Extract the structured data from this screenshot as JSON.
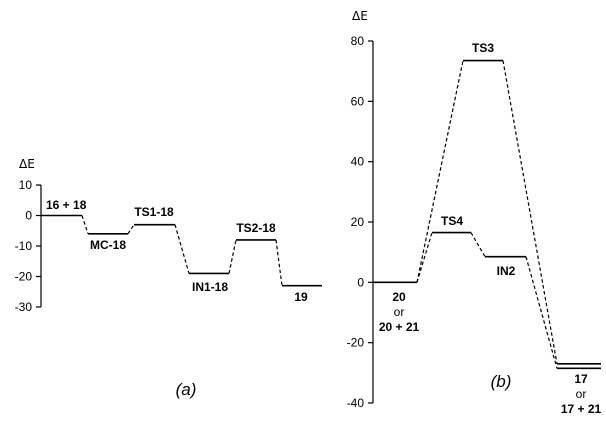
{
  "chart_data": [
    {
      "type": "line",
      "panel_label": "(a)",
      "ylabel": "ΔE",
      "ylim": [
        -30,
        10
      ],
      "yticks": [
        10,
        0,
        -10,
        -20,
        -30
      ],
      "ytick_labels": [
        "10",
        "0",
        "-10",
        "-20",
        "-30"
      ],
      "levels": [
        {
          "label": "16 + 18",
          "energy": 0
        },
        {
          "label": "MC-18",
          "energy": -6
        },
        {
          "label": "TS1-18",
          "energy": -3
        },
        {
          "label": "IN1-18",
          "energy": -19
        },
        {
          "label": "TS2-18",
          "energy": -8
        },
        {
          "label": "19",
          "energy": -23
        }
      ]
    },
    {
      "type": "line",
      "panel_label": "(b)",
      "ylabel": "ΔE",
      "ylim": [
        -40,
        80
      ],
      "yticks": [
        80,
        60,
        40,
        20,
        0,
        -20,
        -40
      ],
      "ytick_labels": [
        "80",
        "60",
        "40",
        "20",
        "0",
        "-20",
        "-40"
      ],
      "levels": [
        {
          "label_lines": [
            "20",
            "or",
            "20 + 21"
          ],
          "energy": 0
        },
        {
          "label": "TS3",
          "energy": 73.5
        },
        {
          "label": "TS4",
          "energy": 16.5
        },
        {
          "label": "IN2",
          "energy": 8.5
        },
        {
          "label_lines": [
            "17",
            "or",
            "17 + 21"
          ],
          "energy": -27
        },
        {
          "label": "",
          "energy": -28.5
        }
      ],
      "paths": [
        {
          "name": "",
          "sequence": [
            0,
            1,
            4
          ]
        },
        {
          "name": "",
          "sequence": [
            0,
            2,
            3,
            5
          ]
        }
      ]
    }
  ]
}
